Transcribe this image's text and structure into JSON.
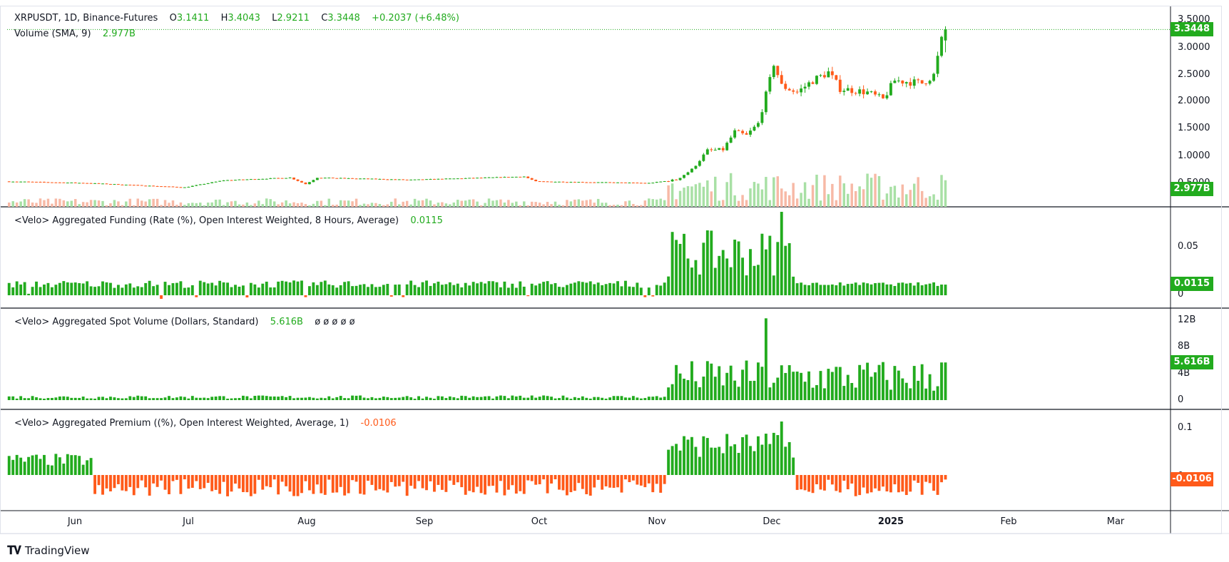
{
  "header": {
    "symbol": "XRPUSDT, 1D, Binance-Futures",
    "o_label": "O",
    "o_value": "3.1411",
    "h_label": "H",
    "h_value": "3.4043",
    "l_label": "L",
    "l_value": "2.9211",
    "c_label": "C",
    "c_value": "3.3448",
    "change": "+0.2037 (+6.48%)",
    "volume_label": "Volume (SMA, 9)",
    "volume_value": "2.977B"
  },
  "badges": {
    "price": "3.3448",
    "volume": "2.977B",
    "funding": "0.0115",
    "spot": "5.616B",
    "premium": "-0.0106"
  },
  "panes": {
    "funding": {
      "title": "<Velo> Aggregated Funding (Rate (%), Open Interest Weighted, 8 Hours, Average)",
      "value": "0.0115"
    },
    "spot": {
      "title": "<Velo> Aggregated Spot Volume (Dollars, Standard)",
      "value": "5.616B",
      "extras": "ø ø ø ø ø"
    },
    "premium": {
      "title": "<Velo> Aggregated Premium ((%), Open Interest Weighted, Average, 1)",
      "value": "-0.0106"
    }
  },
  "y_axis": {
    "price": [
      "3.5000",
      "3.0000",
      "2.5000",
      "2.0000",
      "1.5000",
      "1.0000",
      "0.5000"
    ],
    "funding": [
      "0.05",
      "0"
    ],
    "spot": [
      "12B",
      "8B",
      "4B",
      "0"
    ],
    "premium": [
      "0.1",
      "0"
    ]
  },
  "x_axis": {
    "labels": [
      "Jun",
      "Jul",
      "Aug",
      "Sep",
      "Oct",
      "Nov",
      "Dec",
      "2025",
      "Feb",
      "Mar"
    ]
  },
  "brand": {
    "name": "TradingView",
    "logo": "tv-logo-icon"
  },
  "colors": {
    "up": "#22ab1e",
    "down": "#ff5a1a",
    "vol_up": "#a8e0a5",
    "vol_down": "#f7b9a6",
    "grid": "#131722"
  },
  "chart_data": {
    "type": "candlestick",
    "symbol": "XRPUSDT",
    "interval": "1D",
    "x_range": [
      "2024-05-21",
      "2025-03-15"
    ],
    "last": {
      "date": "2025-01-16",
      "open": 3.1411,
      "high": 3.4043,
      "low": 2.9211,
      "close": 3.3448
    },
    "ylim": [
      0.35,
      3.6
    ],
    "keypoints": [
      {
        "date": "2024-05-21",
        "close": 0.53
      },
      {
        "date": "2024-06-10",
        "close": 0.5
      },
      {
        "date": "2024-07-05",
        "close": 0.42
      },
      {
        "date": "2024-07-15",
        "close": 0.55
      },
      {
        "date": "2024-08-01",
        "close": 0.6
      },
      {
        "date": "2024-08-05",
        "close": 0.48
      },
      {
        "date": "2024-08-08",
        "close": 0.6
      },
      {
        "date": "2024-09-01",
        "close": 0.56
      },
      {
        "date": "2024-09-30",
        "close": 0.62
      },
      {
        "date": "2024-10-03",
        "close": 0.53
      },
      {
        "date": "2024-11-01",
        "close": 0.5
      },
      {
        "date": "2024-11-08",
        "close": 0.56
      },
      {
        "date": "2024-11-12",
        "close": 0.75
      },
      {
        "date": "2024-11-16",
        "close": 1.1
      },
      {
        "date": "2024-11-20",
        "close": 1.12
      },
      {
        "date": "2024-11-23",
        "close": 1.45
      },
      {
        "date": "2024-11-26",
        "close": 1.38
      },
      {
        "date": "2024-11-29",
        "close": 1.6
      },
      {
        "date": "2024-12-02",
        "close": 2.4
      },
      {
        "date": "2024-12-03",
        "close": 2.72
      },
      {
        "date": "2024-12-05",
        "close": 2.3
      },
      {
        "date": "2024-12-09",
        "close": 2.18
      },
      {
        "date": "2024-12-13",
        "close": 2.4
      },
      {
        "date": "2024-12-17",
        "close": 2.55
      },
      {
        "date": "2024-12-20",
        "close": 2.25
      },
      {
        "date": "2024-12-27",
        "close": 2.18
      },
      {
        "date": "2024-12-31",
        "close": 2.05
      },
      {
        "date": "2025-01-03",
        "close": 2.4
      },
      {
        "date": "2025-01-10",
        "close": 2.35
      },
      {
        "date": "2025-01-13",
        "close": 2.5
      },
      {
        "date": "2025-01-15",
        "close": 3.14
      },
      {
        "date": "2025-01-16",
        "close": 3.3448
      }
    ],
    "volume_last": "2.977B",
    "funding_last": 0.0115,
    "funding_peak": {
      "date": "2024-12-05",
      "value": 0.09
    },
    "spot_volume_last_billions": 5.616,
    "spot_volume_peak": {
      "date": "2024-12-01",
      "value_billions": 12.2
    },
    "premium_last": -0.0106,
    "premium_peak": {
      "date": "2024-12-05",
      "value": 0.125
    }
  }
}
